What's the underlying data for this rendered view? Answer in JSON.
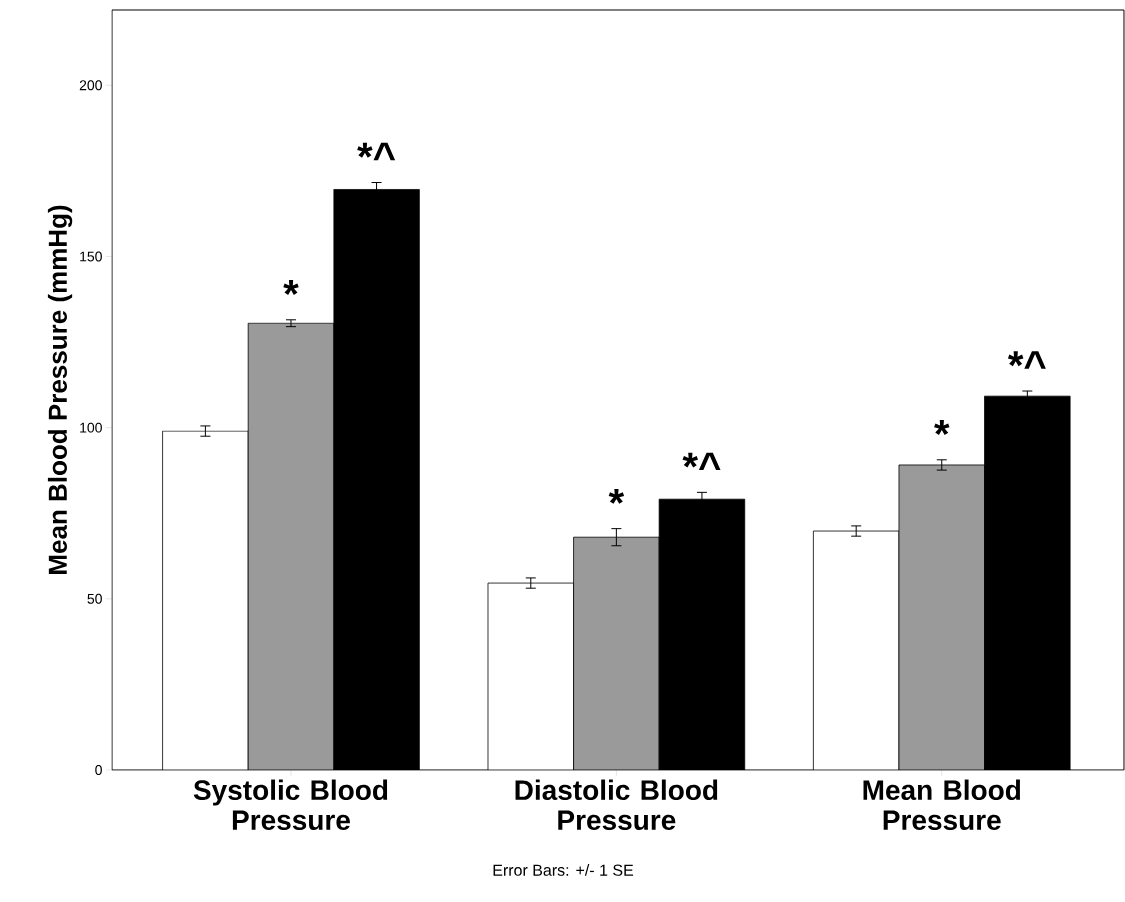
{
  "chart_data": {
    "type": "bar",
    "ylabel": "Mean Blood Pressure (mmHg)",
    "categories": [
      "Systolic Blood Pressure",
      "Diastolic Blood Pressure",
      "Mean Blood Pressure"
    ],
    "ylim": [
      0,
      222
    ],
    "yticks": [
      0,
      50,
      100,
      150,
      200
    ],
    "annotations": [
      "Error Bars: +/- 1 SE"
    ],
    "series": [
      {
        "color": "#ffffff",
        "values": [
          99,
          54.6,
          69.8
        ],
        "errors": [
          1.5,
          1.5,
          1.5
        ]
      },
      {
        "color": "#9a9a9a",
        "values": [
          130.5,
          68,
          89.1
        ],
        "errors": [
          1,
          2.5,
          1.5
        ],
        "value_labels": [
          "*",
          "*",
          "*"
        ]
      },
      {
        "color": "#000000",
        "values": [
          169.6,
          79.1,
          109.2
        ],
        "errors": [
          2,
          2,
          1.5
        ],
        "value_labels": [
          "*^",
          "*^",
          "*^"
        ]
      }
    ]
  }
}
